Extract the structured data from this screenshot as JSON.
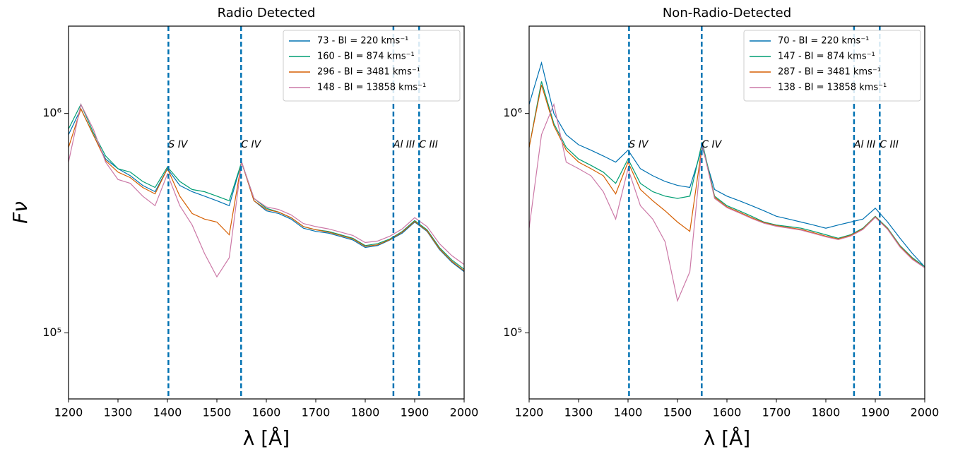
{
  "chart_data": [
    {
      "type": "line",
      "title": "Radio Detected",
      "x_label": "λ [Å]",
      "y_label": "Fν",
      "log_y": true,
      "legend": "upper right",
      "xlim": [
        1200,
        2000
      ],
      "ylim": [
        50000,
        2500000
      ],
      "xticks": [
        1200,
        1300,
        1400,
        1500,
        1600,
        1700,
        1800,
        1900,
        2000
      ],
      "yticks": [
        {
          "value": 100000,
          "label": "10⁵"
        },
        {
          "value": 1000000,
          "label": "10⁶"
        }
      ],
      "vlines": [
        {
          "x": 1402,
          "label": "S IV"
        },
        {
          "x": 1549,
          "label": "C IV"
        },
        {
          "x": 1857,
          "label": "Al III"
        },
        {
          "x": 1909,
          "label": "C III"
        }
      ],
      "vline_color": "#0072b2",
      "x": [
        1200,
        1225,
        1250,
        1275,
        1300,
        1325,
        1350,
        1375,
        1400,
        1425,
        1450,
        1475,
        1500,
        1525,
        1550,
        1575,
        1600,
        1625,
        1650,
        1675,
        1700,
        1725,
        1750,
        1775,
        1800,
        1825,
        1850,
        1875,
        1900,
        1925,
        1950,
        1975,
        2000
      ],
      "series": [
        {
          "name": "73 - BI = 220 kms⁻¹",
          "color": "#0072b2",
          "values": [
            800000,
            1050000,
            800000,
            620000,
            560000,
            520000,
            470000,
            440000,
            560000,
            470000,
            440000,
            420000,
            400000,
            380000,
            600000,
            400000,
            360000,
            350000,
            330000,
            300000,
            290000,
            285000,
            275000,
            265000,
            245000,
            250000,
            265000,
            285000,
            320000,
            290000,
            240000,
            210000,
            190000
          ]
        },
        {
          "name": "160 - BI = 874 kms⁻¹",
          "color": "#009e73",
          "values": [
            850000,
            1100000,
            820000,
            640000,
            560000,
            540000,
            490000,
            460000,
            570000,
            490000,
            450000,
            440000,
            420000,
            400000,
            600000,
            410000,
            370000,
            355000,
            335000,
            305000,
            295000,
            290000,
            280000,
            270000,
            250000,
            255000,
            268000,
            290000,
            325000,
            295000,
            245000,
            215000,
            195000
          ]
        },
        {
          "name": "296 - BI = 3481 kms⁻¹",
          "color": "#d55e00",
          "values": [
            700000,
            1050000,
            800000,
            610000,
            540000,
            510000,
            460000,
            430000,
            560000,
            420000,
            350000,
            330000,
            320000,
            280000,
            600000,
            400000,
            365000,
            355000,
            335000,
            305000,
            295000,
            288000,
            278000,
            268000,
            248000,
            252000,
            266000,
            288000,
            322000,
            292000,
            242000,
            212000,
            192000
          ]
        },
        {
          "name": "148 - BI = 13858 kms⁻¹",
          "color": "#cc79a7",
          "values": [
            600000,
            1100000,
            850000,
            600000,
            500000,
            480000,
            420000,
            380000,
            530000,
            380000,
            310000,
            230000,
            180000,
            220000,
            600000,
            410000,
            375000,
            365000,
            345000,
            315000,
            305000,
            298000,
            288000,
            278000,
            258000,
            262000,
            276000,
            298000,
            335000,
            305000,
            255000,
            225000,
            205000
          ]
        }
      ]
    },
    {
      "type": "line",
      "title": "Non-Radio-Detected",
      "x_label": "λ [Å]",
      "log_y": true,
      "legend": "upper right",
      "xlim": [
        1200,
        2000
      ],
      "ylim": [
        50000,
        2500000
      ],
      "xticks": [
        1200,
        1300,
        1400,
        1500,
        1600,
        1700,
        1800,
        1900,
        2000
      ],
      "yticks": [
        {
          "value": 100000,
          "label": "10⁵"
        },
        {
          "value": 1000000,
          "label": "10⁶"
        }
      ],
      "vlines": [
        {
          "x": 1402,
          "label": "S IV"
        },
        {
          "x": 1549,
          "label": "C IV"
        },
        {
          "x": 1857,
          "label": "Al III"
        },
        {
          "x": 1909,
          "label": "C III"
        }
      ],
      "vline_color": "#0072b2",
      "x": [
        1200,
        1225,
        1250,
        1275,
        1300,
        1325,
        1350,
        1375,
        1400,
        1425,
        1450,
        1475,
        1500,
        1525,
        1550,
        1575,
        1600,
        1625,
        1650,
        1675,
        1700,
        1725,
        1750,
        1775,
        1800,
        1825,
        1850,
        1875,
        1900,
        1925,
        1950,
        1975,
        2000
      ],
      "series": [
        {
          "name": "70 - BI = 220 kms⁻¹",
          "color": "#0072b2",
          "values": [
            1100000,
            1700000,
            1000000,
            800000,
            720000,
            680000,
            640000,
            600000,
            680000,
            560000,
            520000,
            490000,
            470000,
            460000,
            700000,
            450000,
            420000,
            400000,
            380000,
            360000,
            340000,
            330000,
            320000,
            310000,
            300000,
            310000,
            320000,
            330000,
            370000,
            320000,
            270000,
            230000,
            200000
          ]
        },
        {
          "name": "147 - BI = 874 kms⁻¹",
          "color": "#009e73",
          "values": [
            700000,
            1400000,
            900000,
            700000,
            620000,
            580000,
            540000,
            480000,
            620000,
            480000,
            440000,
            420000,
            410000,
            420000,
            740000,
            420000,
            380000,
            360000,
            340000,
            320000,
            310000,
            305000,
            300000,
            290000,
            280000,
            270000,
            280000,
            300000,
            340000,
            300000,
            250000,
            220000,
            200000
          ]
        },
        {
          "name": "287 - BI = 3481 kms⁻¹",
          "color": "#d55e00",
          "values": [
            700000,
            1350000,
            880000,
            680000,
            600000,
            560000,
            520000,
            430000,
            600000,
            450000,
            400000,
            360000,
            320000,
            290000,
            720000,
            415000,
            375000,
            355000,
            335000,
            318000,
            308000,
            302000,
            296000,
            286000,
            276000,
            268000,
            278000,
            298000,
            338000,
            298000,
            248000,
            218000,
            198000
          ]
        },
        {
          "name": "138 - BI = 13858 kms⁻¹",
          "color": "#cc79a7",
          "values": [
            300000,
            800000,
            1100000,
            600000,
            560000,
            520000,
            440000,
            330000,
            560000,
            380000,
            330000,
            260000,
            140000,
            190000,
            720000,
            410000,
            372000,
            352000,
            332000,
            316000,
            306000,
            300000,
            294000,
            284000,
            274000,
            266000,
            276000,
            296000,
            336000,
            296000,
            246000,
            216000,
            198000
          ]
        }
      ]
    }
  ]
}
